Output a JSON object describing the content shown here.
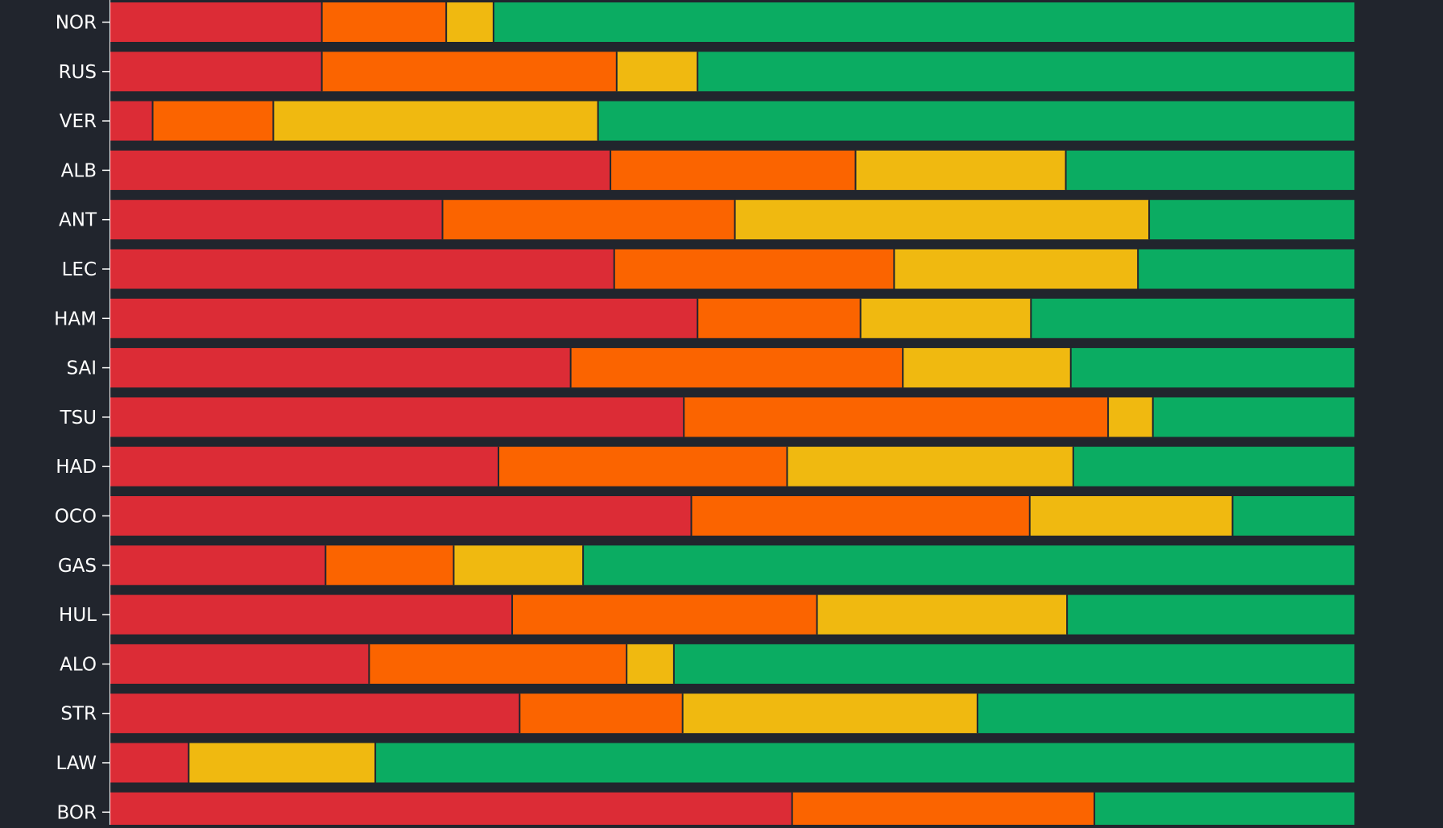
{
  "chart_data": {
    "type": "bar",
    "orientation": "horizontal",
    "stacked": true,
    "normalized": true,
    "categories": [
      "NOR",
      "RUS",
      "VER",
      "ALB",
      "ANT",
      "LEC",
      "HAM",
      "SAI",
      "TSU",
      "HAD",
      "OCO",
      "GAS",
      "HUL",
      "ALO",
      "STR",
      "LAW",
      "BOR"
    ],
    "series": [
      {
        "color": "#dc2c36",
        "values": [
          17,
          17,
          3.4,
          40.2,
          26.7,
          40.5,
          47.2,
          37,
          46.1,
          31.2,
          46.7,
          17.3,
          32.3,
          20.8,
          32.9,
          6.3,
          54.8
        ]
      },
      {
        "color": "#fb6400",
        "values": [
          10,
          23.7,
          9.7,
          19.7,
          23.5,
          22.5,
          13.1,
          26.7,
          34.1,
          23.2,
          27.2,
          10.3,
          24.5,
          20.7,
          13.1,
          0,
          24.3
        ]
      },
      {
        "color": "#f0b910",
        "values": [
          3.8,
          6.5,
          26.1,
          16.9,
          33.3,
          19.6,
          13.7,
          13.5,
          3.6,
          23,
          16.3,
          10.4,
          20.1,
          3.8,
          23.7,
          15,
          0
        ]
      },
      {
        "color": "#0bac62",
        "values": [
          69.2,
          52.8,
          60.8,
          23.2,
          16.5,
          17.4,
          26,
          22.8,
          16.2,
          22.6,
          9.8,
          62,
          23.1,
          54.7,
          30.3,
          78.7,
          20.9
        ]
      }
    ],
    "xlim": [
      0,
      100
    ],
    "grid": false,
    "legend": "none",
    "background": "#21252d",
    "label_color": "#ffffff",
    "segment_divider_color": "#21252d"
  }
}
